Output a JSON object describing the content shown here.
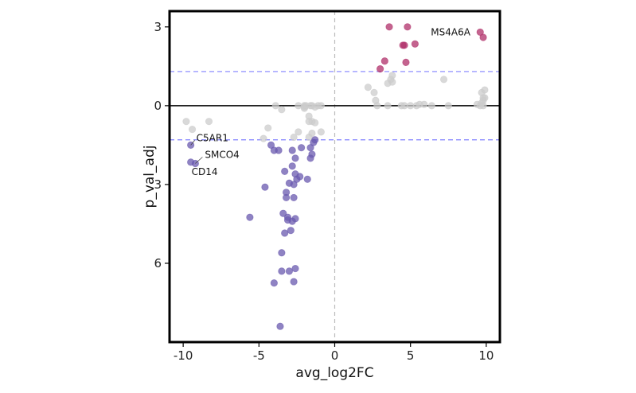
{
  "chart_data": {
    "type": "scatter",
    "title": "",
    "xlabel": "avg_log2FC",
    "ylabel": "p_val_adj",
    "xlim": [
      -10.9,
      10.9
    ],
    "ylim": [
      -9.0,
      3.6
    ],
    "xticks": [
      -10,
      -5,
      0,
      5,
      10
    ],
    "xtick_labels": [
      "-10",
      "-5",
      "0",
      "5",
      "10"
    ],
    "yticks": [
      3,
      0,
      -3,
      -6
    ],
    "ytick_labels": [
      "3",
      "0",
      "3",
      "6"
    ],
    "grid": false,
    "reference_lines": {
      "horizontal_solid": 0,
      "horizontal_dashed": [
        1.3,
        -1.3
      ],
      "vertical_dashed": 0
    },
    "colors": {
      "up": "#b0306a",
      "down": "#6a5aaf",
      "neutral": "#cccccc",
      "threshold": "#8080ff",
      "vline": "#bbbbbb"
    },
    "series": [
      {
        "name": "up",
        "points": [
          [
            3.6,
            3.0
          ],
          [
            4.8,
            3.0
          ],
          [
            9.6,
            2.8
          ],
          [
            9.8,
            2.6
          ],
          [
            4.6,
            2.3
          ],
          [
            4.5,
            2.3
          ],
          [
            5.3,
            2.35
          ],
          [
            3.3,
            1.7
          ],
          [
            4.7,
            1.65
          ],
          [
            3.0,
            1.4
          ]
        ]
      },
      {
        "name": "down",
        "points": [
          [
            -9.5,
            -1.5
          ],
          [
            -9.5,
            -2.15
          ],
          [
            -9.2,
            -2.2
          ],
          [
            -4.0,
            -1.7
          ],
          [
            -4.2,
            -1.5
          ],
          [
            -3.7,
            -1.7
          ],
          [
            -2.2,
            -1.6
          ],
          [
            -1.6,
            -1.6
          ],
          [
            -1.4,
            -1.4
          ],
          [
            -1.3,
            -1.3
          ],
          [
            -1.5,
            -1.85
          ],
          [
            -1.6,
            -2.0
          ],
          [
            -2.8,
            -1.7
          ],
          [
            -2.6,
            -2.0
          ],
          [
            -3.3,
            -2.5
          ],
          [
            -2.8,
            -2.3
          ],
          [
            -2.6,
            -2.6
          ],
          [
            -2.5,
            -2.8
          ],
          [
            -3.0,
            -2.95
          ],
          [
            -2.7,
            -3.0
          ],
          [
            -2.3,
            -2.7
          ],
          [
            -1.8,
            -2.8
          ],
          [
            -3.2,
            -3.3
          ],
          [
            -3.2,
            -3.5
          ],
          [
            -2.7,
            -3.5
          ],
          [
            -4.6,
            -3.1
          ],
          [
            -5.6,
            -4.25
          ],
          [
            -3.4,
            -4.1
          ],
          [
            -3.1,
            -4.25
          ],
          [
            -3.1,
            -4.35
          ],
          [
            -2.6,
            -4.3
          ],
          [
            -2.8,
            -4.4
          ],
          [
            -2.9,
            -4.75
          ],
          [
            -3.3,
            -4.85
          ],
          [
            -3.5,
            -5.6
          ],
          [
            -3.5,
            -6.3
          ],
          [
            -3.0,
            -6.3
          ],
          [
            -2.6,
            -6.2
          ],
          [
            -2.7,
            -6.7
          ],
          [
            -4.0,
            -6.75
          ],
          [
            -3.6,
            -8.4
          ]
        ]
      },
      {
        "name": "neutral",
        "points": [
          [
            -9.8,
            -0.6
          ],
          [
            -9.4,
            -0.9
          ],
          [
            -8.3,
            -0.6
          ],
          [
            -3.9,
            0.0
          ],
          [
            -3.5,
            -0.15
          ],
          [
            -2.4,
            0.0
          ],
          [
            -2.0,
            0.0
          ],
          [
            -2.0,
            -0.05
          ],
          [
            -1.9,
            0.0
          ],
          [
            -1.5,
            0.0
          ],
          [
            -1.1,
            0.0
          ],
          [
            -1.3,
            -0.05
          ],
          [
            -1.6,
            0.0
          ],
          [
            -0.9,
            0.0
          ],
          [
            -2.0,
            -0.1
          ],
          [
            -1.7,
            -0.4
          ],
          [
            -1.5,
            -0.6
          ],
          [
            -1.3,
            -0.65
          ],
          [
            -1.7,
            -0.6
          ],
          [
            -2.4,
            -1.0
          ],
          [
            -1.5,
            -1.05
          ],
          [
            -0.9,
            -1.0
          ],
          [
            -1.7,
            -1.2
          ],
          [
            -2.7,
            -1.2
          ],
          [
            -4.4,
            -0.85
          ],
          [
            -4.7,
            -1.25
          ],
          [
            2.2,
            0.7
          ],
          [
            2.6,
            0.5
          ],
          [
            2.7,
            0.2
          ],
          [
            2.8,
            0.0
          ],
          [
            3.5,
            0.85
          ],
          [
            3.7,
            1.0
          ],
          [
            3.8,
            1.15
          ],
          [
            3.8,
            0.9
          ],
          [
            3.5,
            0.0
          ],
          [
            4.4,
            0.0
          ],
          [
            4.6,
            0.0
          ],
          [
            5.0,
            0.0
          ],
          [
            5.4,
            0.0
          ],
          [
            5.6,
            0.05
          ],
          [
            5.9,
            0.05
          ],
          [
            6.4,
            0.0
          ],
          [
            7.2,
            1.0
          ],
          [
            7.5,
            0.0
          ],
          [
            9.4,
            0.05
          ],
          [
            9.6,
            0.0
          ],
          [
            9.7,
            0.1
          ],
          [
            9.8,
            0.2
          ],
          [
            9.9,
            0.3
          ],
          [
            9.8,
            0.0
          ],
          [
            9.7,
            0.5
          ],
          [
            9.9,
            0.6
          ],
          [
            9.8,
            0.3
          ]
        ]
      }
    ],
    "annotations": [
      {
        "text": "MS4A6A",
        "x": 9.6,
        "y": 2.8
      },
      {
        "text": "C5AR1",
        "x": -9.5,
        "y": -1.5
      },
      {
        "text": "SMCO4",
        "x": -9.2,
        "y": -2.2
      },
      {
        "text": "CD14",
        "x": -9.5,
        "y": -2.15
      }
    ]
  }
}
